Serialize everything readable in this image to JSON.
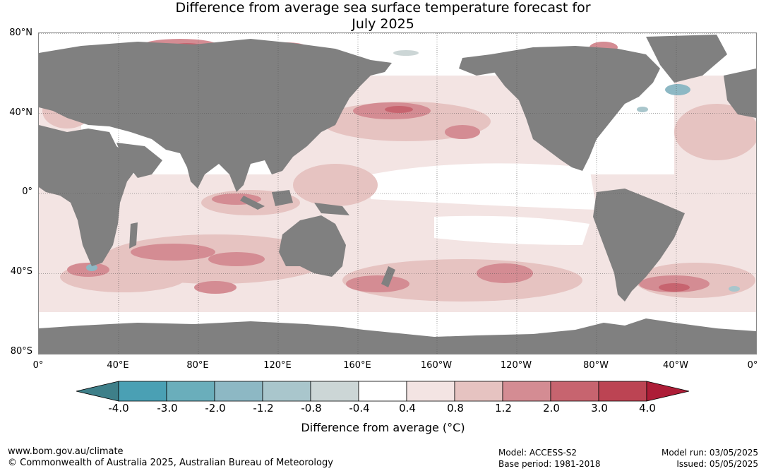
{
  "title_line1": "Difference from average sea surface temperature forecast for",
  "title_line2": "July 2025",
  "lat_labels": [
    "80°N",
    "40°N",
    "0°",
    "40°S",
    "80°S"
  ],
  "lon_labels": [
    "0°",
    "40°E",
    "80°E",
    "120°E",
    "160°E",
    "160°W",
    "120°W",
    "80°W",
    "40°W",
    "0°"
  ],
  "colorbar": {
    "ticks": [
      "-4.0",
      "-3.0",
      "-2.0",
      "-1.2",
      "-0.8",
      "-0.4",
      "0.4",
      "0.8",
      "1.2",
      "2.0",
      "3.0",
      "4.0"
    ],
    "colors": [
      "#3e7f89",
      "#4aa0b4",
      "#6aaebb",
      "#8db8c4",
      "#a9c6cc",
      "#ccd6d6",
      "#ffffff",
      "#f3e4e3",
      "#e6c3c1",
      "#d48c93",
      "#c7646f",
      "#bc4453",
      "#ad1d37"
    ],
    "label": "Difference from average (°C)"
  },
  "footer": {
    "url": "www.bom.gov.au/climate",
    "copyright": "© Commonwealth of Australia 2025, Australian Bureau of Meteorology",
    "model": "Model: ACCESS-S2",
    "base_period": "Base period: 1981-2018",
    "model_run": "Model run: 03/05/2025",
    "issued": "Issued: 05/05/2025"
  }
}
